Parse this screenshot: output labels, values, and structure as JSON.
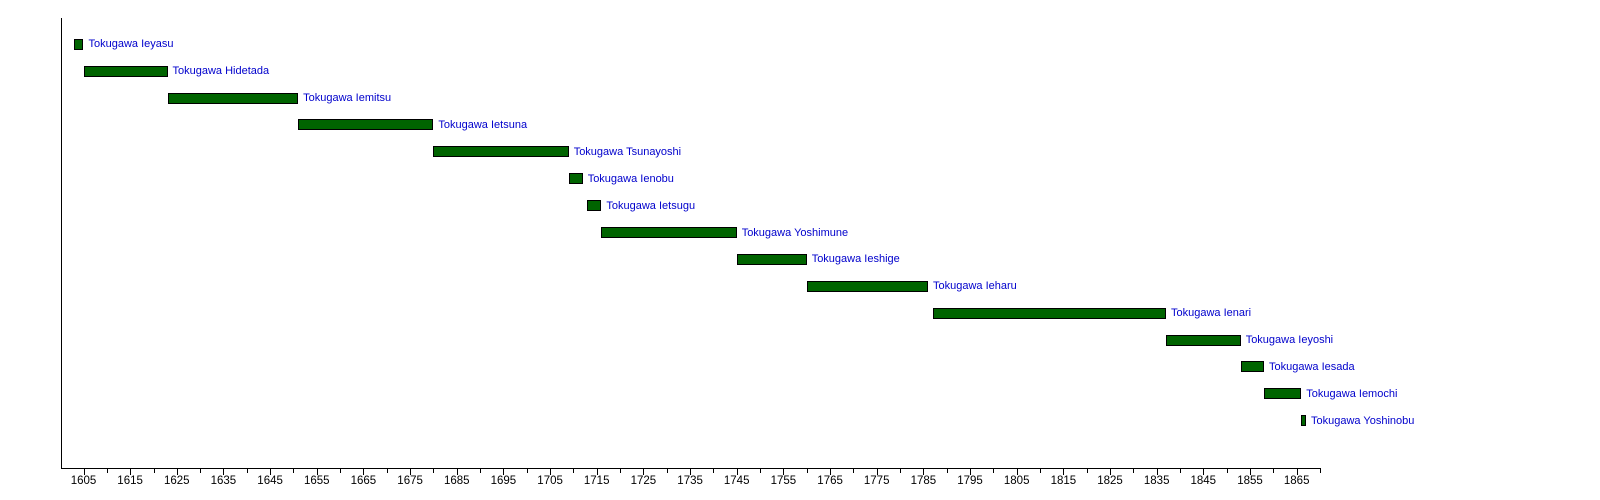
{
  "chart_data": {
    "type": "bar",
    "subtype": "horizontal-timeline",
    "title": "",
    "xlabel": "",
    "ylabel": "",
    "grid": false,
    "legend": false,
    "xlim": [
      1600.4,
      1870
    ],
    "x_major_ticks": [
      1605,
      1615,
      1625,
      1635,
      1645,
      1655,
      1665,
      1675,
      1685,
      1695,
      1705,
      1715,
      1725,
      1735,
      1745,
      1755,
      1765,
      1775,
      1785,
      1795,
      1805,
      1815,
      1825,
      1835,
      1845,
      1855,
      1865
    ],
    "x_minor_ticks": [
      1610,
      1620,
      1630,
      1640,
      1650,
      1660,
      1670,
      1680,
      1690,
      1700,
      1710,
      1720,
      1730,
      1740,
      1750,
      1760,
      1770,
      1780,
      1790,
      1800,
      1810,
      1820,
      1830,
      1840,
      1850,
      1860,
      1870
    ],
    "series": [
      {
        "name": "Tokugawa Ieyasu",
        "start": 1603,
        "end": 1605
      },
      {
        "name": "Tokugawa Hidetada",
        "start": 1605,
        "end": 1623
      },
      {
        "name": "Tokugawa Iemitsu",
        "start": 1623,
        "end": 1651
      },
      {
        "name": "Tokugawa Ietsuna",
        "start": 1651,
        "end": 1680
      },
      {
        "name": "Tokugawa Tsunayoshi",
        "start": 1680,
        "end": 1709
      },
      {
        "name": "Tokugawa Ienobu",
        "start": 1709,
        "end": 1712
      },
      {
        "name": "Tokugawa Ietsugu",
        "start": 1713,
        "end": 1716
      },
      {
        "name": "Tokugawa Yoshimune",
        "start": 1716,
        "end": 1745
      },
      {
        "name": "Tokugawa Ieshige",
        "start": 1745,
        "end": 1760
      },
      {
        "name": "Tokugawa Ieharu",
        "start": 1760,
        "end": 1786
      },
      {
        "name": "Tokugawa Ienari",
        "start": 1787,
        "end": 1837
      },
      {
        "name": "Tokugawa Ieyoshi",
        "start": 1837,
        "end": 1853
      },
      {
        "name": "Tokugawa Iesada",
        "start": 1853,
        "end": 1858
      },
      {
        "name": "Tokugawa Iemochi",
        "start": 1858,
        "end": 1866
      },
      {
        "name": "Tokugawa Yoshinobu",
        "start": 1866,
        "end": 1867
      }
    ],
    "colors": {
      "bar_fill": "#006400",
      "bar_border": "#000000",
      "label_text": "#0000CC",
      "axis": "#000000",
      "background": "#ffffff"
    }
  }
}
